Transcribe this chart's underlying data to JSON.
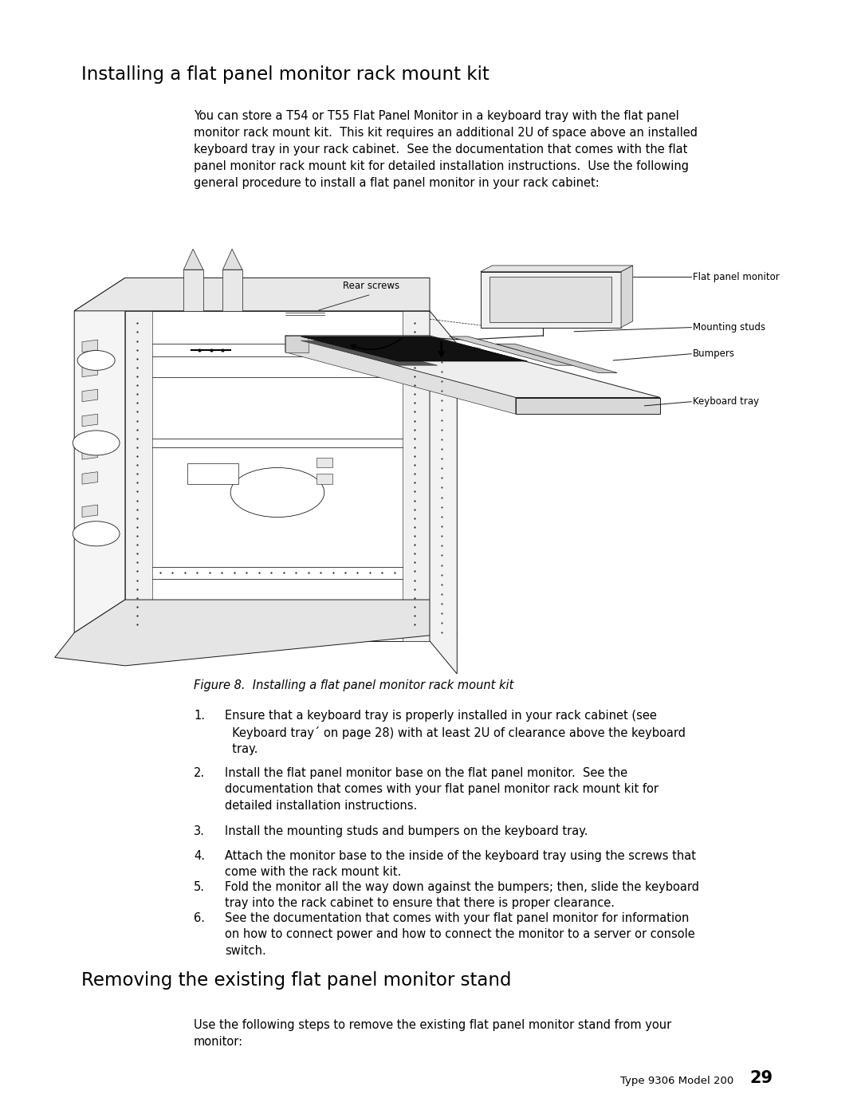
{
  "background_color": "#ffffff",
  "page_width": 10.8,
  "page_height": 13.97,
  "section1_title": "Installing a flat panel monitor rack mount kit",
  "section1_title_fontsize": 16.5,
  "intro_text": "You can store a T54 or T55 Flat Panel Monitor in a keyboard tray with the flat panel\nmonitor rack mount kit.  This kit requires an additional 2U of space above an installed\nkeyboard tray in your rack cabinet.  See the documentation that comes with the flat\npanel monitor rack mount kit for detailed installation instructions.  Use the following\ngeneral procedure to install a flat panel monitor in your rack cabinet:",
  "intro_fontsize": 10.5,
  "figure_caption": "Figure 8.  Installing a flat panel monitor rack mount kit",
  "figure_caption_fontsize": 10.5,
  "steps": [
    "Ensure that a keyboard tray is properly installed in your rack cabinet (see\n  Keyboard tray´ on page 28) with at least 2U of clearance above the keyboard\n  tray.",
    "Install the flat panel monitor base on the flat panel monitor.  See the\ndocumentation that comes with your flat panel monitor rack mount kit for\ndetailed installation instructions.",
    "Install the mounting studs and bumpers on the keyboard tray.",
    "Attach the monitor base to the inside of the keyboard tray using the screws that\ncome with the rack mount kit.",
    "Fold the monitor all the way down against the bumpers; then, slide the keyboard\ntray into the rack cabinet to ensure that there is proper clearance.",
    "See the documentation that comes with your flat panel monitor for information\non how to connect power and how to connect the monitor to a server or console\nswitch."
  ],
  "steps_fontsize": 10.5,
  "section2_title": "Removing the existing flat panel monitor stand",
  "section2_title_fontsize": 16.5,
  "section2_text": "Use the following steps to remove the existing flat panel monitor stand from your\nmonitor:",
  "section2_fontsize": 10.5,
  "footer_text": "Type 9306 Model 200",
  "footer_page": "29",
  "footer_fontsize": 9.5,
  "diagram_labels": {
    "flat_panel_monitor": "Flat panel monitor",
    "rear_screws": "Rear screws",
    "mounting_studs": "Mounting studs",
    "bumpers": "Bumpers",
    "keyboard_tray": "Keyboard tray"
  },
  "diagram_label_fontsize": 8.5,
  "lc": "#1a1a1a",
  "lw": 0.7
}
